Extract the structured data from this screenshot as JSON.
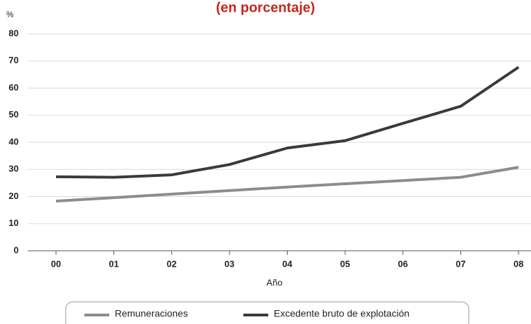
{
  "chart_data": {
    "type": "line",
    "title": "(en porcentaje)",
    "y_label": "%",
    "x_label": "Año",
    "categories": [
      "00",
      "01",
      "02",
      "03",
      "04",
      "05",
      "06",
      "07",
      "08"
    ],
    "series": [
      {
        "name": "Remuneraciones",
        "color": "#8c8c8c",
        "values": [
          18.3,
          19.6,
          20.9,
          22.2,
          23.5,
          24.7,
          25.9,
          27.1,
          30.8
        ]
      },
      {
        "name": "Excedente bruto de explotación",
        "color": "#3a3a3a",
        "values": [
          27.3,
          27.1,
          28.0,
          31.8,
          37.9,
          40.6,
          47.0,
          53.3,
          67.7
        ]
      }
    ],
    "ylim": [
      0,
      80
    ],
    "yticks": [
      0,
      10,
      20,
      30,
      40,
      50,
      60,
      70,
      80
    ],
    "grid": true
  }
}
